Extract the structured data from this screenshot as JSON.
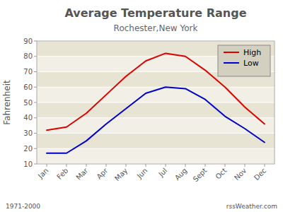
{
  "chart_data": {
    "type": "line",
    "title": "Average Temperature Range",
    "subtitle": "Rochester,New York",
    "ylabel": "Fahrenheit",
    "annotations": [
      "1971-2000",
      "rssWeather.com"
    ],
    "categories": [
      "Jan",
      "Feb",
      "Mar",
      "Apr",
      "May",
      "Jun",
      "Jul",
      "Aug",
      "Sept",
      "Oct",
      "Nov",
      "Dec"
    ],
    "series": [
      {
        "name": "High",
        "color": "#dd0000",
        "values": [
          32,
          34,
          43,
          55,
          67,
          77,
          82,
          80,
          71,
          60,
          47,
          36
        ]
      },
      {
        "name": "Low",
        "color": "#0000cc",
        "values": [
          17,
          17,
          25,
          36,
          46,
          56,
          60,
          59,
          52,
          41,
          33,
          24
        ]
      }
    ],
    "ylim": [
      10,
      90
    ],
    "yticks": [
      10,
      20,
      30,
      40,
      50,
      60,
      70,
      80,
      90
    ],
    "grid": true,
    "legend": "upper right"
  }
}
